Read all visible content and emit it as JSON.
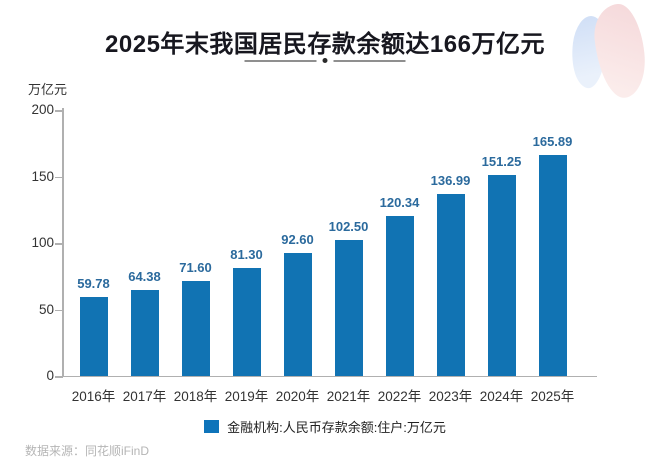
{
  "page": {
    "title": "2025年末我国居民存款余额达166万亿元",
    "source_note": "数据来源：同花顺iFinD"
  },
  "legend": {
    "label": "金融机构:人民币存款余额:住户:万亿元"
  },
  "colors": {
    "bar": "#1173b3",
    "legend_swatch": "#0e74ba",
    "value_label": "#2b6a9d",
    "axis_line": "#b0b0b0",
    "tick_label": "#333333",
    "title": "#17171f",
    "source": "#b5b5b5"
  },
  "chart_data": {
    "type": "bar",
    "title": "2025年末我国居民存款余额达166万亿元",
    "series_name": "金融机构:人民币存款余额:住户:万亿元",
    "categories": [
      "2016年",
      "2017年",
      "2018年",
      "2019年",
      "2020年",
      "2021年",
      "2022年",
      "2023年",
      "2024年",
      "2025年"
    ],
    "values": [
      59.78,
      64.38,
      71.6,
      81.3,
      92.6,
      102.5,
      120.34,
      136.99,
      151.25,
      165.89
    ],
    "value_labels": [
      "59.78",
      "64.38",
      "71.60",
      "81.30",
      "92.60",
      "102.50",
      "120.34",
      "136.99",
      "151.25",
      "165.89"
    ],
    "xlabel": "",
    "ylabel": "万亿元",
    "ylim": [
      0,
      200
    ],
    "yticks": [
      0,
      50,
      100,
      150,
      200
    ],
    "grid": false,
    "legend_position": "bottom",
    "value_labels_shown": true
  }
}
